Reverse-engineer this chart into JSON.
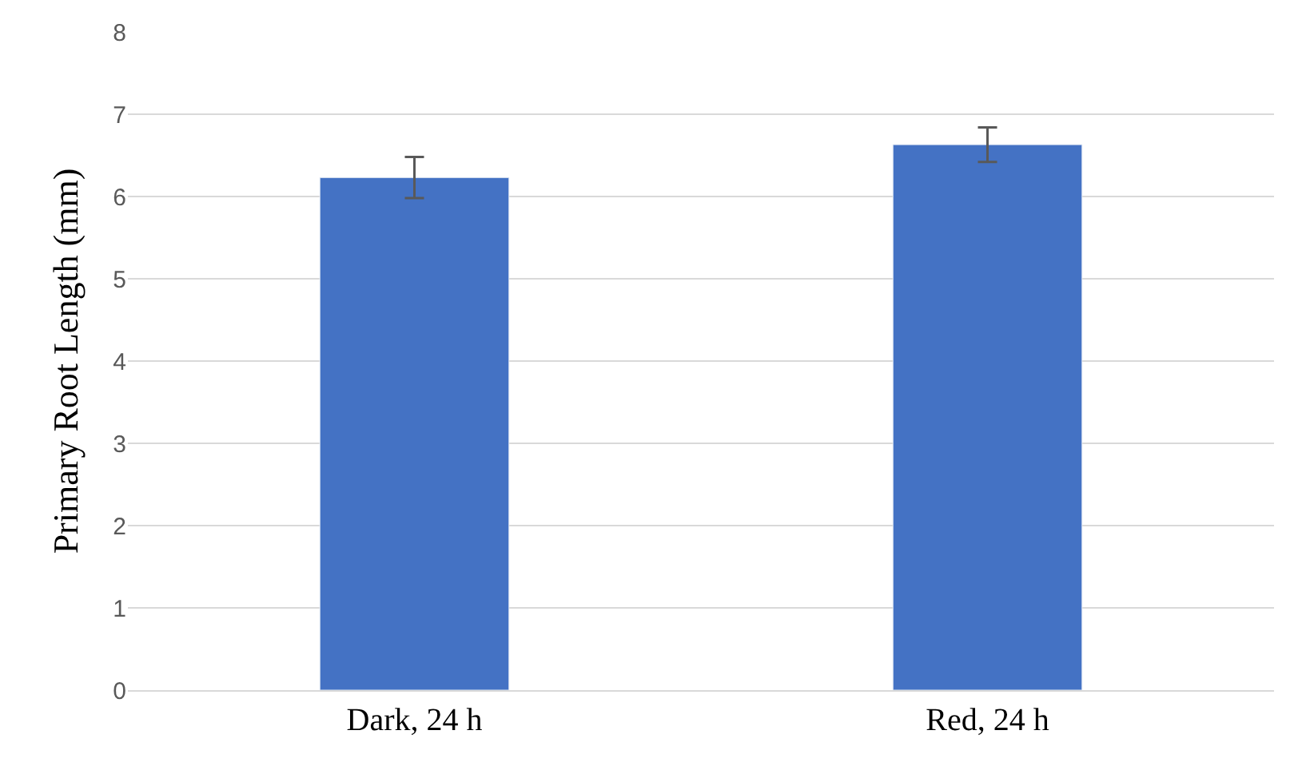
{
  "chart_data": {
    "type": "bar",
    "ylabel": "Primary Root Length (mm)",
    "categories": [
      "Dark, 24 h",
      "Red, 24 h"
    ],
    "values": [
      6.23,
      6.63
    ],
    "errors": [
      0.25,
      0.21
    ],
    "color": "#4472c4",
    "ylim": [
      0,
      8
    ],
    "yticks": [
      0,
      1,
      2,
      3,
      4,
      5,
      6,
      7,
      8
    ],
    "grid": "y"
  }
}
